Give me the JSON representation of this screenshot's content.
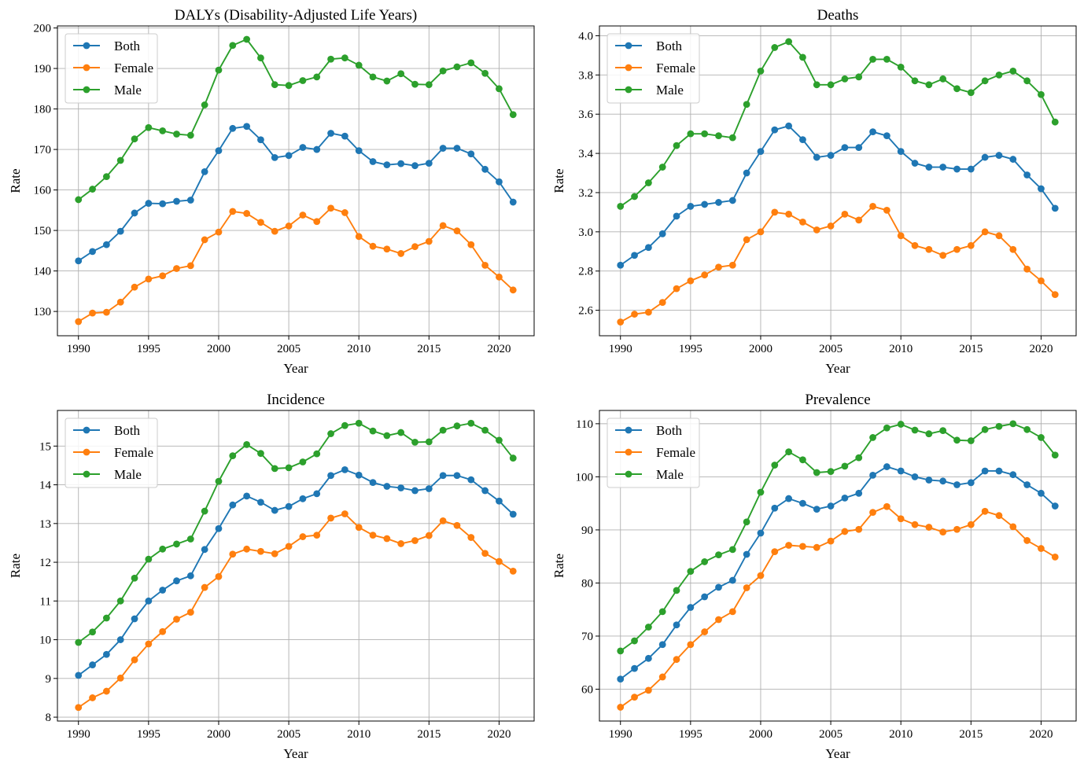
{
  "figure": {
    "xlabel": "Year",
    "ylabel": "Rate"
  },
  "colors": {
    "Both": "#1f77b4",
    "Female": "#ff7f0e",
    "Male": "#2ca02c"
  },
  "chart_data": [
    {
      "type": "line",
      "title": "DALYs (Disability-Adjusted Life Years)",
      "xlabel": "Year",
      "ylabel": "Rate",
      "grid": true,
      "legend": "top-left",
      "xlim": [
        1988.5,
        2022.5
      ],
      "ylim": [
        124,
        200.5
      ],
      "xticks": [
        1990,
        1995,
        2000,
        2005,
        2010,
        2015,
        2020
      ],
      "yticks": [
        130,
        140,
        150,
        160,
        170,
        180,
        190,
        200
      ],
      "ytick_labels": [
        "130",
        "140",
        "150",
        "160",
        "170",
        "180",
        "190",
        "200"
      ],
      "x": [
        1990,
        1991,
        1992,
        1993,
        1994,
        1995,
        1996,
        1997,
        1998,
        1999,
        2000,
        2001,
        2002,
        2003,
        2004,
        2005,
        2006,
        2007,
        2008,
        2009,
        2010,
        2011,
        2012,
        2013,
        2014,
        2015,
        2016,
        2017,
        2018,
        2019,
        2020,
        2021
      ],
      "series": [
        {
          "name": "Both",
          "values": [
            142.5,
            144.8,
            146.5,
            149.8,
            154.3,
            156.7,
            156.6,
            157.2,
            157.5,
            164.5,
            169.7,
            175.2,
            175.7,
            172.4,
            168.0,
            168.5,
            170.5,
            170.0,
            174.0,
            173.3,
            169.7,
            167.0,
            166.2,
            166.5,
            166.0,
            166.6,
            170.3,
            170.3,
            168.9,
            165.1,
            162.0,
            157.0
          ]
        },
        {
          "name": "Female",
          "values": [
            127.5,
            129.6,
            129.8,
            132.3,
            136.0,
            138.0,
            138.8,
            140.6,
            141.3,
            147.7,
            149.6,
            154.7,
            154.2,
            152.0,
            149.8,
            151.1,
            153.8,
            152.2,
            155.5,
            154.4,
            148.5,
            146.1,
            145.4,
            144.3,
            146.0,
            147.3,
            151.2,
            149.9,
            146.5,
            141.4,
            138.5,
            135.3
          ]
        },
        {
          "name": "Male",
          "values": [
            157.6,
            160.2,
            163.3,
            167.3,
            172.6,
            175.4,
            174.6,
            173.8,
            173.5,
            181.0,
            189.6,
            195.7,
            197.2,
            192.6,
            186.0,
            185.8,
            187.0,
            187.9,
            192.3,
            192.6,
            190.8,
            187.9,
            186.9,
            188.7,
            186.1,
            186.0,
            189.4,
            190.4,
            191.4,
            188.8,
            185.0,
            178.6
          ]
        }
      ]
    },
    {
      "type": "line",
      "title": "Deaths",
      "xlabel": "Year",
      "ylabel": "Rate",
      "grid": true,
      "legend": "top-left",
      "xlim": [
        1988.5,
        2022.5
      ],
      "ylim": [
        2.47,
        4.05
      ],
      "xticks": [
        1990,
        1995,
        2000,
        2005,
        2010,
        2015,
        2020
      ],
      "yticks": [
        2.6,
        2.8,
        3.0,
        3.2,
        3.4,
        3.6,
        3.8,
        4.0
      ],
      "ytick_labels": [
        "2.6",
        "2.8",
        "3.0",
        "3.2",
        "3.4",
        "3.6",
        "3.8",
        "4.0"
      ],
      "x": [
        1990,
        1991,
        1992,
        1993,
        1994,
        1995,
        1996,
        1997,
        1998,
        1999,
        2000,
        2001,
        2002,
        2003,
        2004,
        2005,
        2006,
        2007,
        2008,
        2009,
        2010,
        2011,
        2012,
        2013,
        2014,
        2015,
        2016,
        2017,
        2018,
        2019,
        2020,
        2021
      ],
      "series": [
        {
          "name": "Both",
          "values": [
            2.83,
            2.88,
            2.92,
            2.99,
            3.08,
            3.13,
            3.14,
            3.15,
            3.16,
            3.3,
            3.41,
            3.52,
            3.54,
            3.47,
            3.38,
            3.39,
            3.43,
            3.43,
            3.51,
            3.49,
            3.41,
            3.35,
            3.33,
            3.33,
            3.32,
            3.32,
            3.38,
            3.39,
            3.37,
            3.29,
            3.22,
            3.12
          ]
        },
        {
          "name": "Female",
          "values": [
            2.54,
            2.58,
            2.59,
            2.64,
            2.71,
            2.75,
            2.78,
            2.82,
            2.83,
            2.96,
            3.0,
            3.1,
            3.09,
            3.05,
            3.01,
            3.03,
            3.09,
            3.06,
            3.13,
            3.11,
            2.98,
            2.93,
            2.91,
            2.88,
            2.91,
            2.93,
            3.0,
            2.98,
            2.91,
            2.81,
            2.75,
            2.68
          ]
        },
        {
          "name": "Male",
          "values": [
            3.13,
            3.18,
            3.25,
            3.33,
            3.44,
            3.5,
            3.5,
            3.49,
            3.48,
            3.65,
            3.82,
            3.94,
            3.97,
            3.89,
            3.75,
            3.75,
            3.78,
            3.79,
            3.88,
            3.88,
            3.84,
            3.77,
            3.75,
            3.78,
            3.73,
            3.71,
            3.77,
            3.8,
            3.82,
            3.77,
            3.7,
            3.56
          ]
        }
      ]
    },
    {
      "type": "line",
      "title": "Incidence",
      "xlabel": "Year",
      "ylabel": "Rate",
      "grid": true,
      "legend": "top-left",
      "xlim": [
        1988.5,
        2022.5
      ],
      "ylim": [
        7.9,
        15.92
      ],
      "xticks": [
        1990,
        1995,
        2000,
        2005,
        2010,
        2015,
        2020
      ],
      "yticks": [
        8,
        9,
        10,
        11,
        12,
        13,
        14,
        15
      ],
      "ytick_labels": [
        "8",
        "9",
        "10",
        "11",
        "12",
        "13",
        "14",
        "15"
      ],
      "x": [
        1990,
        1991,
        1992,
        1993,
        1994,
        1995,
        1996,
        1997,
        1998,
        1999,
        2000,
        2001,
        2002,
        2003,
        2004,
        2005,
        2006,
        2007,
        2008,
        2009,
        2010,
        2011,
        2012,
        2013,
        2014,
        2015,
        2016,
        2017,
        2018,
        2019,
        2020,
        2021
      ],
      "series": [
        {
          "name": "Both",
          "values": [
            9.08,
            9.35,
            9.62,
            10.0,
            10.54,
            11.0,
            11.28,
            11.52,
            11.65,
            12.33,
            12.87,
            13.48,
            13.71,
            13.55,
            13.34,
            13.44,
            13.64,
            13.77,
            14.24,
            14.39,
            14.25,
            14.06,
            13.96,
            13.92,
            13.85,
            13.9,
            14.24,
            14.24,
            14.13,
            13.85,
            13.58,
            13.24
          ]
        },
        {
          "name": "Female",
          "values": [
            8.25,
            8.5,
            8.67,
            9.01,
            9.48,
            9.89,
            10.21,
            10.53,
            10.71,
            11.35,
            11.63,
            12.21,
            12.34,
            12.28,
            12.22,
            12.41,
            12.66,
            12.7,
            13.14,
            13.25,
            12.9,
            12.7,
            12.61,
            12.48,
            12.56,
            12.69,
            13.07,
            12.95,
            12.64,
            12.23,
            12.02,
            11.77
          ]
        },
        {
          "name": "Male",
          "values": [
            9.93,
            10.2,
            10.56,
            11.0,
            11.59,
            12.08,
            12.34,
            12.47,
            12.6,
            13.32,
            14.09,
            14.75,
            15.04,
            14.81,
            14.42,
            14.44,
            14.59,
            14.8,
            15.32,
            15.53,
            15.59,
            15.39,
            15.27,
            15.35,
            15.1,
            15.11,
            15.41,
            15.52,
            15.59,
            15.41,
            15.15,
            14.69
          ]
        }
      ]
    },
    {
      "type": "line",
      "title": "Prevalence",
      "xlabel": "Year",
      "ylabel": "Rate",
      "grid": true,
      "legend": "top-left",
      "xlim": [
        1988.5,
        2022.5
      ],
      "ylim": [
        54,
        112.5
      ],
      "xticks": [
        1990,
        1995,
        2000,
        2005,
        2010,
        2015,
        2020
      ],
      "yticks": [
        60,
        70,
        80,
        90,
        100,
        110
      ],
      "ytick_labels": [
        "60",
        "70",
        "80",
        "90",
        "100",
        "110"
      ],
      "x": [
        1990,
        1991,
        1992,
        1993,
        1994,
        1995,
        1996,
        1997,
        1998,
        1999,
        2000,
        2001,
        2002,
        2003,
        2004,
        2005,
        2006,
        2007,
        2008,
        2009,
        2010,
        2011,
        2012,
        2013,
        2014,
        2015,
        2016,
        2017,
        2018,
        2019,
        2020,
        2021
      ],
      "series": [
        {
          "name": "Both",
          "values": [
            61.9,
            63.9,
            65.8,
            68.4,
            72.1,
            75.4,
            77.4,
            79.2,
            80.5,
            85.4,
            89.4,
            94.1,
            95.9,
            95.0,
            93.9,
            94.5,
            96.0,
            96.9,
            100.3,
            101.9,
            101.1,
            100.0,
            99.4,
            99.2,
            98.5,
            98.9,
            101.1,
            101.1,
            100.4,
            98.5,
            96.9,
            94.5
          ]
        },
        {
          "name": "Female",
          "values": [
            56.6,
            58.5,
            59.8,
            62.3,
            65.6,
            68.4,
            70.8,
            73.1,
            74.6,
            79.1,
            81.4,
            85.9,
            87.1,
            86.9,
            86.7,
            87.9,
            89.7,
            90.1,
            93.3,
            94.4,
            92.1,
            91.0,
            90.5,
            89.6,
            90.1,
            91.0,
            93.5,
            92.7,
            90.6,
            88.0,
            86.5,
            84.9
          ]
        },
        {
          "name": "Male",
          "values": [
            67.2,
            69.1,
            71.7,
            74.6,
            78.6,
            82.2,
            84.0,
            85.3,
            86.3,
            91.5,
            97.1,
            102.2,
            104.7,
            103.2,
            100.8,
            101.0,
            102.0,
            103.6,
            107.4,
            109.2,
            109.9,
            108.8,
            108.1,
            108.7,
            106.9,
            106.8,
            108.9,
            109.5,
            110.0,
            108.9,
            107.4,
            104.1
          ]
        }
      ]
    }
  ]
}
